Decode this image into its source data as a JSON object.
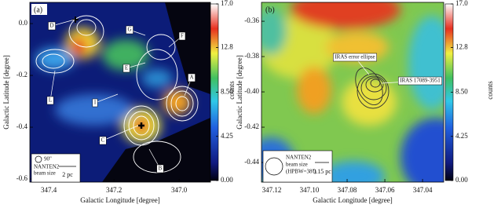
{
  "chart_data": [
    {
      "type": "image",
      "panel_label": "(a)",
      "xlabel": "Galactic Longitude [degree]",
      "ylabel": "Galactic Latitude [degree]",
      "xlim": [
        347.458,
        346.904
      ],
      "xticks": [
        347.4,
        347.2,
        {
          "value": 347,
          "label": "347.0"
        }
      ],
      "ylim": [
        -0.612,
        0.082
      ],
      "yticks": [
        {
          "value": 0,
          "label": "0.0"
        },
        -0.2,
        -0.4,
        -0.6
      ],
      "colorbar": {
        "label": "counts",
        "lim": [
          0,
          17
        ],
        "ticks": [
          {
            "value": 17,
            "label": "17.0"
          },
          12.8,
          {
            "value": 8.5,
            "label": "8.50"
          },
          4.25,
          {
            "value": 0,
            "label": "0.00"
          }
        ]
      },
      "annotations": [
        "D",
        "G",
        "F",
        "E",
        "A",
        "L",
        "I",
        "C",
        "B"
      ],
      "beam_size": "90\"",
      "beam_label": [
        "NANTEN2",
        "beam size"
      ],
      "scale_bar": "2 pc"
    },
    {
      "type": "image",
      "panel_label": "(b)",
      "xlabel": "Galactic Longitude [degree]",
      "ylabel": "Galactic Latitude [degree]",
      "xlim": [
        347.1254,
        347.0288
      ],
      "xticks": [
        347.12,
        {
          "value": 347.1,
          "label": "347.10"
        },
        347.08,
        347.06,
        347.04
      ],
      "ylim": [
        -0.4511,
        -0.3493
      ],
      "yticks": [
        -0.36,
        -0.38,
        {
          "value": -0.4,
          "label": "-0.40"
        },
        -0.42,
        -0.44
      ],
      "colorbar": {
        "label": "counts",
        "lim": [
          0,
          17
        ],
        "ticks": [
          {
            "value": 17,
            "label": "17.0"
          },
          12.8,
          {
            "value": 8.5,
            "label": "8.50"
          },
          4.25,
          {
            "value": 0,
            "label": "0.00"
          }
        ]
      },
      "annotations": [
        "IRAS error ellipse",
        "IRAS 17089-3951"
      ],
      "beam_label": [
        "NANTEN2",
        "beam size",
        "(HPBW=38\")"
      ],
      "scale_bar": "0.15 pc"
    }
  ]
}
